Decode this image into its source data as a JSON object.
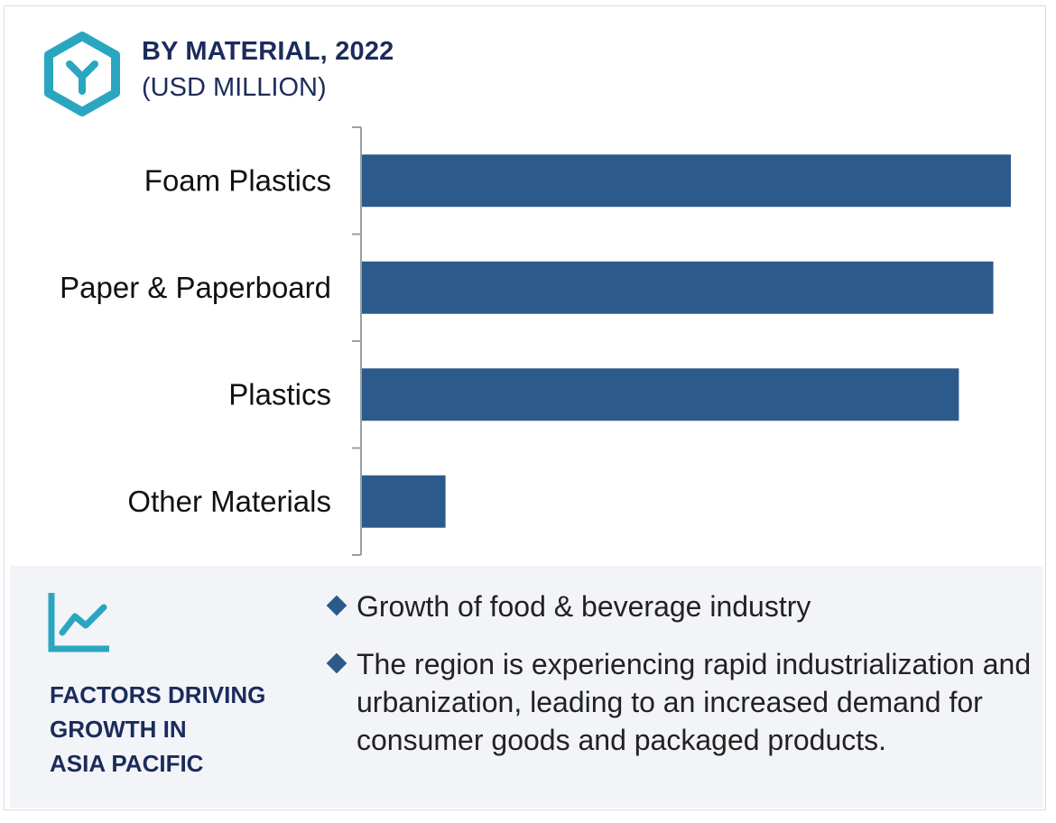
{
  "header": {
    "title": "BY MATERIAL, 2022",
    "subtitle": "(USD MILLION)",
    "logo_icon": "hexagon-y-icon"
  },
  "colors": {
    "bar": "#2c5a8b",
    "accent": "#2aa6c0",
    "title": "#1b2b5b",
    "panel_bg": "#f2f4f7"
  },
  "chart_data": {
    "type": "bar",
    "orientation": "horizontal",
    "title": "BY MATERIAL, 2022",
    "subtitle": "(USD MILLION)",
    "categories": [
      "Foam Plastics",
      "Paper & Paperboard",
      "Plastics",
      "Other Materials"
    ],
    "values": [
      100,
      97.3,
      92,
      13
    ],
    "xlim": [
      0,
      100
    ],
    "value_axis_labels": "none",
    "grid": false,
    "legend": "none"
  },
  "factors": {
    "icon": "trend-line-chart-icon",
    "heading_lines": [
      "FACTORS DRIVING",
      "GROWTH IN",
      "ASIA PACIFIC"
    ],
    "bullets": [
      "Growth of food & beverage industry",
      "The region is experiencing rapid industrialization and urbanization, leading to an increased demand for consumer goods and packaged products."
    ]
  }
}
